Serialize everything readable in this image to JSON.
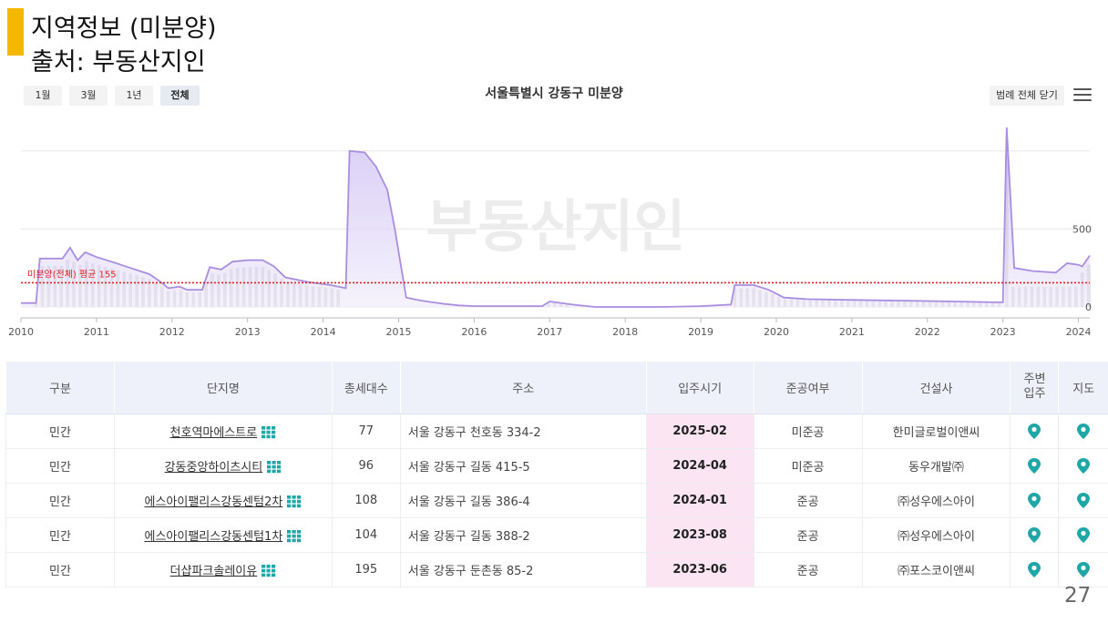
{
  "slide": {
    "title": "지역정보 (미분양)",
    "source": "출처: 부동산지인",
    "page_number": "27"
  },
  "period_buttons": [
    {
      "label": "1월"
    },
    {
      "label": "3월"
    },
    {
      "label": "1년"
    },
    {
      "label": "전체"
    }
  ],
  "legend_button": "범례 전체 닫기",
  "watermark": {
    "text": "부동산지인"
  },
  "colors": {
    "line": "#a98ee0",
    "area_top": "#cbbcf2",
    "area_bottom": "#f2eefc",
    "bars": "#c2c2c2",
    "avg_line": "#e02020",
    "accent": "#f5b800",
    "pin": "#1fa6a6",
    "date_bg": "#fbe5f3"
  },
  "chart_data": {
    "type": "line",
    "title": "서울특별시 강동구 미분양",
    "x_ticks": [
      "2010",
      "2011",
      "2012",
      "2013",
      "2014",
      "2015",
      "2016",
      "2017",
      "2018",
      "2019",
      "2020",
      "2021",
      "2022",
      "2023",
      "2024"
    ],
    "y_ticks": [
      "0",
      "500"
    ],
    "ylim": [
      0,
      1150
    ],
    "xlim": [
      2010.0,
      2024.15
    ],
    "grid": true,
    "average_line": {
      "label": "미분양(전체) 평균 155",
      "value": 155
    },
    "series": [
      {
        "kind": "area-line",
        "points": [
          [
            2010.0,
            25
          ],
          [
            2010.2,
            25
          ],
          [
            2010.25,
            310
          ],
          [
            2010.55,
            310
          ],
          [
            2010.65,
            380
          ],
          [
            2010.75,
            300
          ],
          [
            2010.85,
            350
          ],
          [
            2011.0,
            320
          ],
          [
            2011.2,
            290
          ],
          [
            2011.45,
            250
          ],
          [
            2011.7,
            210
          ],
          [
            2011.85,
            160
          ],
          [
            2011.95,
            120
          ],
          [
            2012.1,
            130
          ],
          [
            2012.2,
            110
          ],
          [
            2012.4,
            110
          ],
          [
            2012.5,
            255
          ],
          [
            2012.65,
            240
          ],
          [
            2012.8,
            290
          ],
          [
            2013.0,
            300
          ],
          [
            2013.2,
            300
          ],
          [
            2013.35,
            260
          ],
          [
            2013.5,
            190
          ],
          [
            2013.8,
            160
          ],
          [
            2014.1,
            140
          ],
          [
            2014.3,
            120
          ],
          [
            2014.35,
            1000
          ],
          [
            2014.55,
            990
          ],
          [
            2014.7,
            900
          ],
          [
            2014.85,
            750
          ],
          [
            2014.95,
            500
          ],
          [
            2015.1,
            60
          ],
          [
            2015.3,
            40
          ],
          [
            2015.6,
            20
          ],
          [
            2015.8,
            10
          ],
          [
            2016.0,
            5
          ],
          [
            2016.3,
            5
          ],
          [
            2016.9,
            5
          ],
          [
            2017.0,
            35
          ],
          [
            2017.3,
            15
          ],
          [
            2017.6,
            0
          ],
          [
            2018.0,
            0
          ],
          [
            2018.5,
            0
          ],
          [
            2019.0,
            5
          ],
          [
            2019.4,
            15
          ],
          [
            2019.45,
            140
          ],
          [
            2019.7,
            140
          ],
          [
            2019.9,
            110
          ],
          [
            2020.1,
            60
          ],
          [
            2020.4,
            50
          ],
          [
            2021.0,
            45
          ],
          [
            2022.0,
            38
          ],
          [
            2022.9,
            30
          ],
          [
            2023.0,
            30
          ],
          [
            2023.05,
            1150
          ],
          [
            2023.15,
            250
          ],
          [
            2023.4,
            230
          ],
          [
            2023.7,
            220
          ],
          [
            2023.85,
            280
          ],
          [
            2024.0,
            270
          ],
          [
            2024.05,
            260
          ],
          [
            2024.15,
            330
          ]
        ]
      }
    ]
  },
  "table": {
    "headers": [
      "구분",
      "단지명",
      "총세대수",
      "주소",
      "입주시기",
      "준공여부",
      "건설사",
      "주변\n입주",
      "지도"
    ],
    "rows": [
      {
        "type": "민간",
        "name": "천호역마에스트로",
        "units": "77",
        "address": "서울 강동구 천호동 334-2",
        "move_in": "2025-02",
        "status": "미준공",
        "builder": "한미글로벌이앤씨"
      },
      {
        "type": "민간",
        "name": "강동중앙하이츠시티",
        "units": "96",
        "address": "서울 강동구 길동 415-5",
        "move_in": "2024-04",
        "status": "미준공",
        "builder": "동우개발㈜"
      },
      {
        "type": "민간",
        "name": "에스아이팰리스강동센텀2차",
        "units": "108",
        "address": "서울 강동구 길동 386-4",
        "move_in": "2024-01",
        "status": "준공",
        "builder": "㈜성우에스아이"
      },
      {
        "type": "민간",
        "name": "에스아이팰리스강동센텀1차",
        "units": "104",
        "address": "서울 강동구 길동 388-2",
        "move_in": "2023-08",
        "status": "준공",
        "builder": "㈜성우에스아이"
      },
      {
        "type": "민간",
        "name": "더샵파크솔레이유",
        "units": "195",
        "address": "서울 강동구 둔촌동 85-2",
        "move_in": "2023-06",
        "status": "준공",
        "builder": "㈜포스코이앤씨"
      }
    ]
  }
}
